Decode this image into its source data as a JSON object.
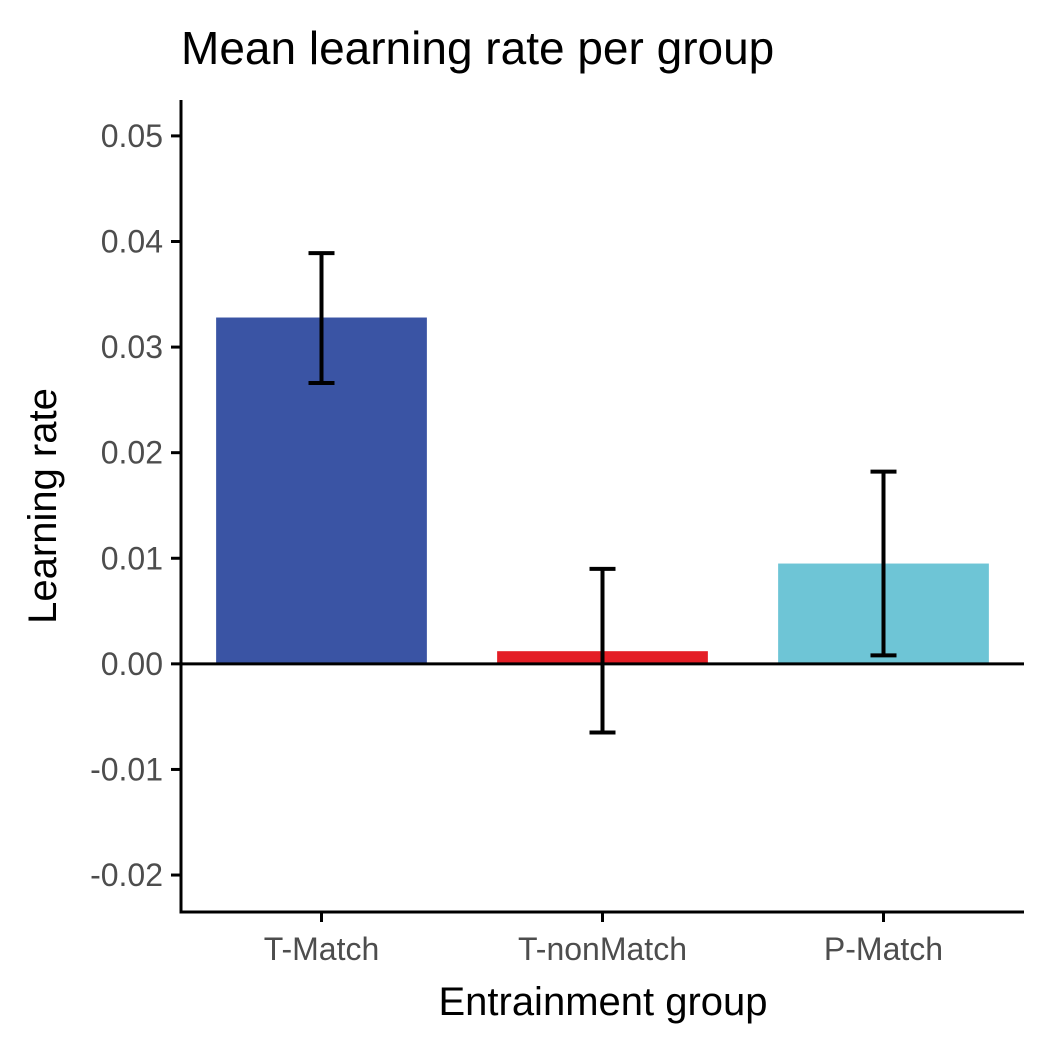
{
  "chart_data": {
    "type": "bar",
    "title": "Mean learning rate per group",
    "xlabel": "Entrainment group",
    "ylabel": "Learning rate",
    "categories": [
      "T-Match",
      "T-nonMatch",
      "P-Match"
    ],
    "values": [
      0.0328,
      0.0012,
      0.0095
    ],
    "error_low": [
      0.0266,
      -0.0065,
      0.0008
    ],
    "error_high": [
      0.0389,
      0.009,
      0.0182
    ],
    "colors": [
      "#3A54A4",
      "#E41E26",
      "#6EC5D6"
    ],
    "ylim": [
      -0.0235,
      0.0534
    ],
    "yticks": [
      -0.02,
      -0.01,
      0.0,
      0.01,
      0.02,
      0.03,
      0.04,
      0.05
    ],
    "ytick_labels": [
      "-0.02",
      "-0.01",
      "0.00",
      "0.01",
      "0.02",
      "0.03",
      "0.04",
      "0.05"
    ],
    "grid": false,
    "legend": "none"
  }
}
